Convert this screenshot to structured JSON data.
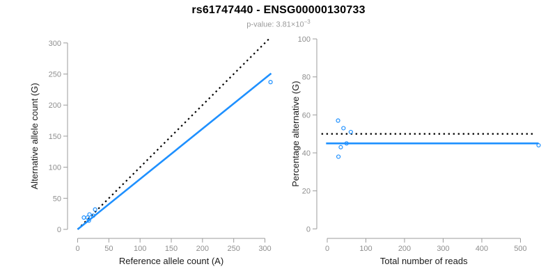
{
  "header": {
    "title": "rs61747440 - ENSG00000130733",
    "subtitle_base": "p-value: 3.81×10",
    "subtitle_exponent": "−3"
  },
  "colors": {
    "accent_blue": "#1E90FF",
    "dotted_black": "#000000",
    "axis_gray": "#9b9b9b",
    "tick_label_gray": "#8e8e8e",
    "axis_title_color": "#1a1a1a",
    "subtitle_gray": "#9a9a9a"
  },
  "chart_data": [
    {
      "type": "scatter",
      "name": "allele-counts",
      "xlabel": "Reference allele count (A)",
      "ylabel": "Alternative allele count (G)",
      "xlim": [
        0,
        300
      ],
      "ylim": [
        0,
        300
      ],
      "xticks": [
        0,
        50,
        100,
        150,
        200,
        250,
        300
      ],
      "yticks": [
        0,
        50,
        100,
        150,
        200,
        250,
        300
      ],
      "grid": false,
      "marker": "open-circle",
      "points": [
        [
          10,
          19
        ],
        [
          16,
          19
        ],
        [
          18,
          14
        ],
        [
          19,
          24
        ],
        [
          25,
          22
        ],
        [
          28,
          32
        ],
        [
          309,
          237
        ]
      ],
      "lines": [
        {
          "name": "identity",
          "style": "dotted",
          "color": "#000000",
          "from": [
            0,
            0
          ],
          "to": [
            306,
            306
          ]
        },
        {
          "name": "regression",
          "style": "solid",
          "color": "#1E90FF",
          "from": [
            0,
            0
          ],
          "to": [
            310,
            251
          ]
        }
      ]
    },
    {
      "type": "scatter",
      "name": "percentage-alternative",
      "xlabel": "Total number of reads",
      "ylabel": "Percentage alternative (G)",
      "xlim": [
        0,
        500
      ],
      "ylim": [
        0,
        100
      ],
      "xticks": [
        0,
        100,
        200,
        300,
        400,
        500
      ],
      "yticks": [
        0,
        20,
        40,
        60,
        80,
        100
      ],
      "grid": false,
      "marker": "open-circle",
      "points": [
        [
          28,
          57
        ],
        [
          42,
          53
        ],
        [
          61,
          51
        ],
        [
          50,
          45
        ],
        [
          35,
          43
        ],
        [
          29,
          38
        ],
        [
          547,
          44
        ]
      ],
      "lines": [
        {
          "name": "expected-50pct",
          "style": "dotted",
          "color": "#000000",
          "from": [
            -15,
            50
          ],
          "to": [
            537,
            50
          ]
        },
        {
          "name": "observed-mean",
          "style": "solid",
          "color": "#1E90FF",
          "from": [
            -3,
            45
          ],
          "to": [
            547,
            45
          ]
        }
      ]
    }
  ]
}
